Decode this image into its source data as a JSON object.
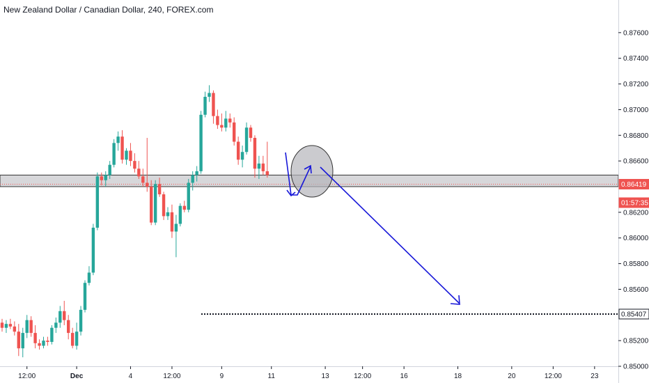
{
  "chart_data": {
    "type": "candlestick",
    "title": "New Zealand Dollar / Canadian Dollar, 240, FOREX.com",
    "ylim": [
      0.85,
      0.878
    ],
    "y_ticks": [
      "0.87600",
      "0.87400",
      "0.87200",
      "0.87000",
      "0.86800",
      "0.86600",
      "0.86200",
      "0.86000",
      "0.85800",
      "0.85600",
      "0.85200",
      "0.85000"
    ],
    "x_ticks": [
      {
        "label": "12:00",
        "bar": 6,
        "bold": false
      },
      {
        "label": "Dec",
        "bar": 18,
        "bold": true
      },
      {
        "label": "4",
        "bar": 31,
        "bold": false
      },
      {
        "label": "12:00",
        "bar": 41,
        "bold": false
      },
      {
        "label": "9",
        "bar": 53,
        "bold": false
      },
      {
        "label": "11",
        "bar": 65,
        "bold": false
      },
      {
        "label": "13",
        "bar": 78,
        "bold": false
      },
      {
        "label": "12:00",
        "bar": 87,
        "bold": false
      },
      {
        "label": "16",
        "bar": 97,
        "bold": false
      },
      {
        "label": "18",
        "bar": 110,
        "bold": false
      },
      {
        "label": "20",
        "bar": 123,
        "bold": false
      },
      {
        "label": "12:00",
        "bar": 133,
        "bold": false
      },
      {
        "label": "23",
        "bar": 143,
        "bold": false
      }
    ],
    "ohlc": [
      [
        0.8534,
        0.8537,
        0.8527,
        0.853
      ],
      [
        0.853,
        0.8536,
        0.8526,
        0.8533
      ],
      [
        0.8533,
        0.8537,
        0.8529,
        0.8531
      ],
      [
        0.8531,
        0.8535,
        0.8524,
        0.8527
      ],
      [
        0.8527,
        0.8533,
        0.8508,
        0.8514
      ],
      [
        0.8514,
        0.853,
        0.8507,
        0.8526
      ],
      [
        0.8526,
        0.854,
        0.8522,
        0.8536
      ],
      [
        0.8536,
        0.8539,
        0.8523,
        0.8526
      ],
      [
        0.8526,
        0.8532,
        0.8514,
        0.8518
      ],
      [
        0.8518,
        0.8521,
        0.8513,
        0.8516
      ],
      [
        0.8516,
        0.8523,
        0.8514,
        0.852
      ],
      [
        0.852,
        0.8523,
        0.8516,
        0.8519
      ],
      [
        0.8519,
        0.8532,
        0.8517,
        0.853
      ],
      [
        0.853,
        0.8538,
        0.8526,
        0.8534
      ],
      [
        0.8534,
        0.8547,
        0.853,
        0.8543
      ],
      [
        0.8543,
        0.8551,
        0.8532,
        0.8536
      ],
      [
        0.8536,
        0.854,
        0.8521,
        0.8526
      ],
      [
        0.8526,
        0.853,
        0.8514,
        0.8516
      ],
      [
        0.8516,
        0.8534,
        0.8513,
        0.8527
      ],
      [
        0.8527,
        0.8547,
        0.8524,
        0.8544
      ],
      [
        0.8544,
        0.8567,
        0.8542,
        0.8565
      ],
      [
        0.8565,
        0.8578,
        0.8563,
        0.8573
      ],
      [
        0.8573,
        0.8611,
        0.8571,
        0.8608
      ],
      [
        0.8608,
        0.8651,
        0.8606,
        0.8648
      ],
      [
        0.8648,
        0.8651,
        0.8641,
        0.8645
      ],
      [
        0.8645,
        0.8652,
        0.864,
        0.8649
      ],
      [
        0.8649,
        0.866,
        0.8646,
        0.8657
      ],
      [
        0.8657,
        0.8677,
        0.8655,
        0.8674
      ],
      [
        0.8674,
        0.8683,
        0.8668,
        0.8679
      ],
      [
        0.8679,
        0.8684,
        0.8658,
        0.8661
      ],
      [
        0.8661,
        0.867,
        0.8657,
        0.8668
      ],
      [
        0.8668,
        0.8674,
        0.8656,
        0.866
      ],
      [
        0.866,
        0.8666,
        0.8651,
        0.8654
      ],
      [
        0.8654,
        0.866,
        0.8646,
        0.8648
      ],
      [
        0.8648,
        0.8654,
        0.864,
        0.8643
      ],
      [
        0.8643,
        0.8678,
        0.8636,
        0.864
      ],
      [
        0.864,
        0.8645,
        0.861,
        0.8612
      ],
      [
        0.8612,
        0.8645,
        0.861,
        0.8642
      ],
      [
        0.8642,
        0.8647,
        0.8632,
        0.8634
      ],
      [
        0.8634,
        0.8636,
        0.8614,
        0.8617
      ],
      [
        0.8617,
        0.8624,
        0.8614,
        0.862
      ],
      [
        0.862,
        0.8626,
        0.86,
        0.8605
      ],
      [
        0.8605,
        0.8618,
        0.8585,
        0.8611
      ],
      [
        0.8611,
        0.8627,
        0.8609,
        0.8625
      ],
      [
        0.8625,
        0.8629,
        0.862,
        0.8622
      ],
      [
        0.8622,
        0.8646,
        0.862,
        0.8643
      ],
      [
        0.8643,
        0.8652,
        0.8637,
        0.8649
      ],
      [
        0.8649,
        0.8656,
        0.8644,
        0.8652
      ],
      [
        0.8652,
        0.8699,
        0.865,
        0.8696
      ],
      [
        0.8696,
        0.8714,
        0.8694,
        0.871
      ],
      [
        0.871,
        0.8719,
        0.8706,
        0.8713
      ],
      [
        0.8713,
        0.8715,
        0.8689,
        0.8695
      ],
      [
        0.8695,
        0.87,
        0.8685,
        0.8688
      ],
      [
        0.8688,
        0.8697,
        0.8683,
        0.8686
      ],
      [
        0.8686,
        0.8699,
        0.8683,
        0.8693
      ],
      [
        0.8693,
        0.8697,
        0.8686,
        0.869
      ],
      [
        0.869,
        0.8694,
        0.8672,
        0.8675
      ],
      [
        0.8675,
        0.8679,
        0.8657,
        0.8661
      ],
      [
        0.8661,
        0.8672,
        0.8655,
        0.8667
      ],
      [
        0.8667,
        0.869,
        0.8665,
        0.8686
      ],
      [
        0.8686,
        0.8688,
        0.8675,
        0.8678
      ],
      [
        0.8678,
        0.868,
        0.8647,
        0.8654
      ],
      [
        0.8654,
        0.8664,
        0.8646,
        0.8658
      ],
      [
        0.8658,
        0.8664,
        0.8649,
        0.8652
      ],
      [
        0.8652,
        0.8675,
        0.8647,
        0.8649
      ]
    ],
    "colors": {
      "up": "#26a69a",
      "down": "#ef5350"
    },
    "annotations": {
      "resistance_zone": [
        0.864,
        0.8649
      ],
      "target_level": 0.85407,
      "price_tags": [
        {
          "label": "0.86419",
          "value": 0.86419,
          "color": "#ef5350"
        },
        {
          "label": "01:57:35",
          "value": 0.86275,
          "color": "#ef5350"
        },
        {
          "label": "0.85407",
          "value": 0.85407,
          "color": "#ffffff"
        }
      ]
    }
  }
}
